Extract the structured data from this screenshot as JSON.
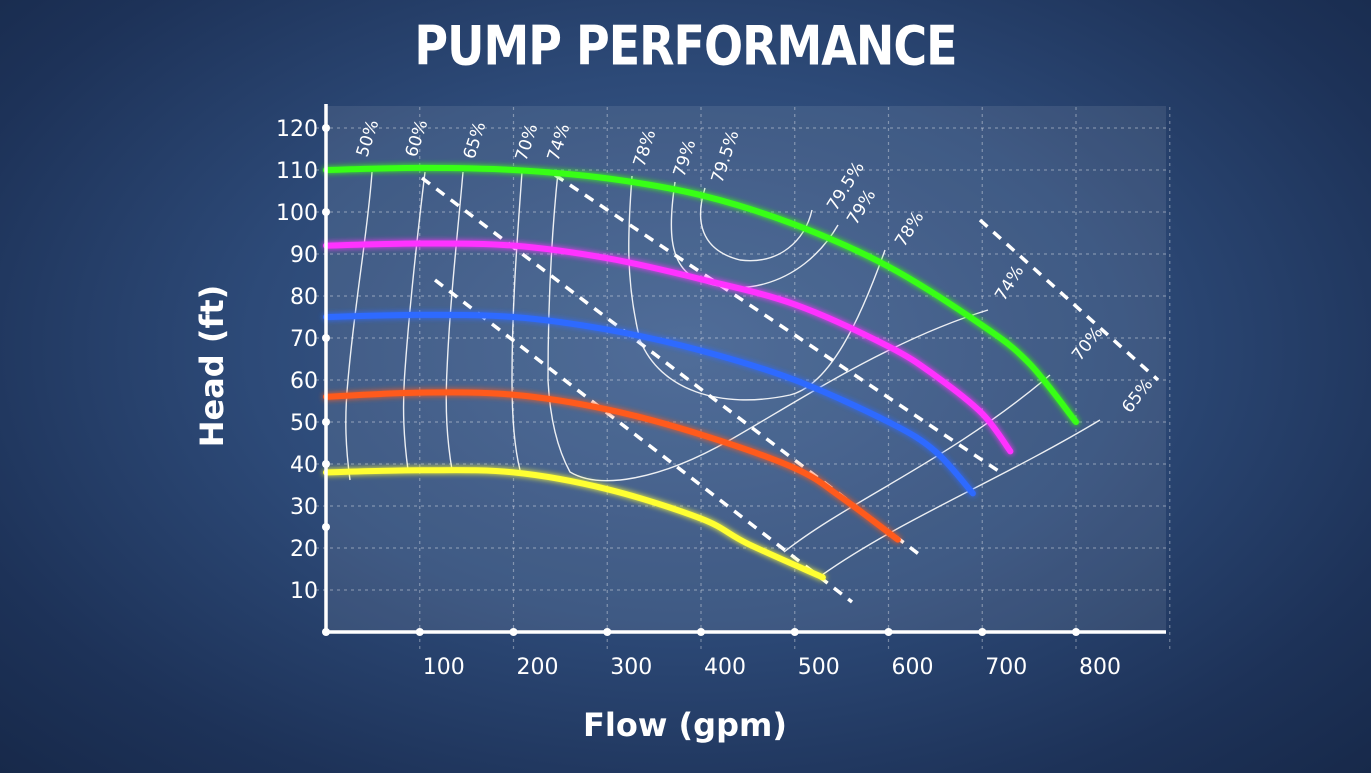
{
  "chart_data": {
    "type": "line",
    "title": "PUMP PERFORMANCE",
    "xlabel": "Flow (gpm)",
    "ylabel": "Head (ft)",
    "xlim": [
      0,
      900
    ],
    "ylim": [
      0,
      125
    ],
    "x_ticks": [
      "100",
      "200",
      "300",
      "400",
      "500",
      "600",
      "700",
      "800"
    ],
    "y_ticks": [
      "10",
      "20",
      "30",
      "40",
      "50",
      "60",
      "70",
      "80",
      "90",
      "100",
      "110",
      "120"
    ],
    "grid": true,
    "series": [
      {
        "color": "#39ff14",
        "points": [
          [
            0,
            110
          ],
          [
            100,
            110.5
          ],
          [
            200,
            110
          ],
          [
            300,
            108
          ],
          [
            400,
            104
          ],
          [
            500,
            97
          ],
          [
            600,
            87
          ],
          [
            700,
            73
          ],
          [
            750,
            64
          ],
          [
            800,
            50
          ]
        ]
      },
      {
        "color": "#ff33ff",
        "points": [
          [
            0,
            92
          ],
          [
            100,
            92.5
          ],
          [
            200,
            92
          ],
          [
            300,
            89
          ],
          [
            400,
            84
          ],
          [
            500,
            78
          ],
          [
            600,
            68
          ],
          [
            650,
            61
          ],
          [
            700,
            52
          ],
          [
            730,
            43
          ]
        ]
      },
      {
        "color": "#2e6bff",
        "points": [
          [
            0,
            75
          ],
          [
            100,
            75.5
          ],
          [
            200,
            75
          ],
          [
            300,
            72
          ],
          [
            400,
            67
          ],
          [
            500,
            60
          ],
          [
            600,
            50
          ],
          [
            650,
            43
          ],
          [
            690,
            33
          ]
        ]
      },
      {
        "color": "#ff5a1e",
        "points": [
          [
            0,
            56
          ],
          [
            100,
            57
          ],
          [
            200,
            56.5
          ],
          [
            300,
            53
          ],
          [
            400,
            47
          ],
          [
            500,
            39
          ],
          [
            550,
            32
          ],
          [
            610,
            22
          ]
        ]
      },
      {
        "color": "#ffff33",
        "points": [
          [
            0,
            38
          ],
          [
            100,
            38.5
          ],
          [
            200,
            38
          ],
          [
            300,
            34
          ],
          [
            400,
            27
          ],
          [
            450,
            21
          ],
          [
            530,
            13
          ]
        ]
      }
    ],
    "efficiency_labels": [
      "50%",
      "60%",
      "65%",
      "70%",
      "74%",
      "78%",
      "79%",
      "79.5%",
      "79.5%",
      "79%",
      "78%",
      "74%",
      "70%",
      "65%"
    ],
    "npsh_lines": 5
  }
}
